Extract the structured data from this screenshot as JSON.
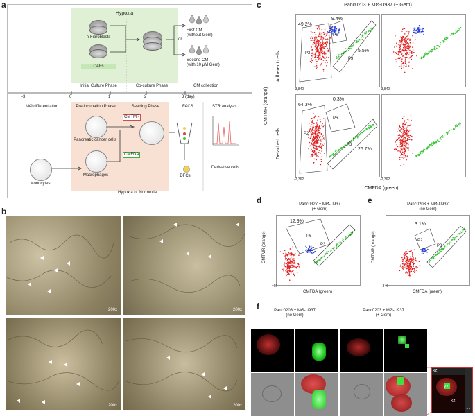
{
  "panels": {
    "a": "a",
    "b": "b",
    "c": "c",
    "d": "d",
    "e": "e",
    "f": "f"
  },
  "a": {
    "hypoxia": "Hypoxia",
    "n_fibroblasts": "n-Fibroblasts",
    "cafs": "CAFs",
    "first_cm": "First CM",
    "first_cm_sub": "(without Gem)",
    "or": "or",
    "second_cm": "Second CM",
    "second_cm_sub": "(with 10 μM Gem)",
    "phase1": "Initial Culture Phase",
    "phase2": "Co-culture Phase",
    "phase3": "CM collection",
    "ticks": [
      "-3",
      "0",
      "1",
      "2",
      "3 (day)"
    ],
    "mo_diff": "MØ differentiation",
    "preinc": "Pre-incubation Phase",
    "seeding": "Seeding Phase",
    "facs": "FACS",
    "str": "STR analysis",
    "cmtmr": "CMTMR",
    "cmfda": "CMFDA",
    "pcc": "Pancreatic cancer cells",
    "macro": "Macrophages",
    "monocytes": "Monocytes",
    "dfcs": "DFCs",
    "derivative": "Derivative cells",
    "hyp_norm": "Hypoxia or Normoxia"
  },
  "b": {
    "mag": [
      "200x",
      "200x",
      "200x",
      "200x"
    ]
  },
  "c": {
    "title": "Panc0203 + MØ-U937 (+ Gem)",
    "adherent": "Adherent cells",
    "detached": "Detached cells",
    "ylabel": "CMTMR (orange)",
    "xlabel": "CMFDA (green)",
    "tl": {
      "p1": "49.2%",
      "p2": "9.4%",
      "p3": "5.5%",
      "g1": "P2",
      "g2": "P6",
      "g3": "P3",
      "xstart": "-3,840",
      "ystart": "-3,840"
    },
    "bl": {
      "p1": "64.3%",
      "p2": "0.3%",
      "p3": "26.7%",
      "g1": "P2",
      "g2": "P6",
      "g3": "P3",
      "xstart": "-2,362",
      "ystart": "-2,362"
    },
    "tr": {
      "xstart": "-3,840"
    },
    "br": {
      "xstart": "-2,362"
    }
  },
  "d": {
    "title": "Panc0327 + MØ-U937",
    "sub": "(+ Gem)",
    "ylabel": "CMTMR (orange)",
    "xlabel": "CMFDA (green)",
    "pct": "12.9%",
    "g1": "P6",
    "g2": "P3",
    "xstart": "-466"
  },
  "e": {
    "title": "Panc0203 + MØ-U937",
    "sub": "(no Gem)",
    "ylabel": "CMTMR (orange)",
    "xlabel": "CMFDA (green)",
    "pct": "3.1%",
    "g1": "P2",
    "g2": "P3",
    "xstart": "-346"
  },
  "f": {
    "left_title": "Panc0203 + MØ-U937",
    "left_sub": "(no Gem)",
    "right_title": "Panc0203 + MØ-U937",
    "right_sub": "(+ Gem)",
    "xz": "XZ",
    "yz": "YZ",
    "yz2": "YZ",
    "xz2": "XZ"
  },
  "colors": {
    "red": "#e02020",
    "green": "#3cc43c",
    "blue": "#2c3fd6",
    "hypoxia_bg": "#dff0d4",
    "normoxia_bg": "#f8e0d3"
  }
}
